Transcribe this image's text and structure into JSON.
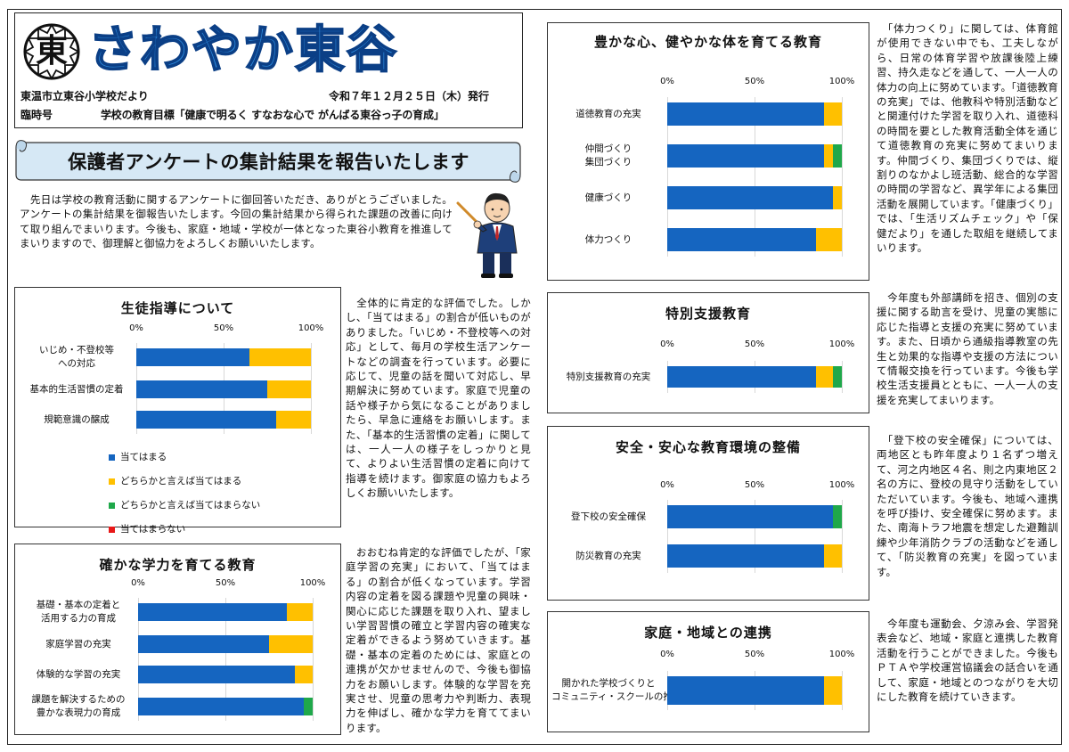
{
  "masthead": {
    "school_mark": "東",
    "title": "さわやか東谷",
    "publisher": "東温市立東谷小学校だより",
    "date": "令和７年１２月２５日（木）発行",
    "issue": "臨時号",
    "goal": "学校の教育目標「健康で明るく すなおな心で がんばる東谷っ子の育成」"
  },
  "banner": {
    "text": "保護者アンケートの集計結果を報告いたします"
  },
  "intro": "　先日は学校の教育活動に関するアンケートに御回答いただき、ありがとうございました。アンケートの集計結果を御報告いたします。今回の集計結果から得られた課題の改善に向けて取り組んでまいります。今後も、家庭・地域・学校が一体となった東谷小教育を推進してまいりますので、御理解と御協力をよろしくお願いいたします。",
  "legend": {
    "items": [
      "当てはまる",
      "どちらかと言えば当てはまる",
      "どちらかと言えば当てはまらない",
      "当てはまらない"
    ],
    "colors": [
      "#1565c0",
      "#ffc000",
      "#1fa84a",
      "#e81818"
    ]
  },
  "texts": {
    "seito": "　全体的に肯定的な評価でした。しかし、「当てはまる」の割合が低いものがありました。「いじめ・不登校等への対応」として、毎月の学校生活アンケートなどの調査を行っています。必要に応じて、児童の話を聞いて対応し、早期解決に努めています。家庭で児童の話や様子から気になることがありましたら、早急に連絡をお願いします。また、「基本的生活習慣の定着」に関しては、一人一人の様子をしっかりと見て、よりよい生活習慣の定着に向けて指導を続けます。御家庭の協力もよろしくお願いいたします。",
    "gakuryoku": "　おおむね肯定的な評価でしたが、「家庭学習の充実」において、「当てはまる」の割合が低くなっています。学習内容の定着を図る課題や児童の興味・関心に応じた課題を取り入れ、望ましい学習習慣の確立と学習内容の確実な定着ができるよう努めていきます。基礎・基本の定着のためには、家庭との連携が欠かせませんので、今後も御協力をお願いします。体験的な学習を充実させ、児童の思考力や判断力、表現力を伸ばし、確かな学力を育ててまいります。",
    "yutaka": "　「体力つくり」に関しては、体育館が使用できない中でも、工夫しながら、日常の体育学習や放課後陸上練習、持久走などを通して、一人一人の体力の向上に努めています。「道徳教育の充実」では、他教科や特別活動などと関連付けた学習を取り入れ、道徳科の時間を要とした教育活動全体を通じて道徳教育の充実に努めてまいります。仲間づくり、集団づくりでは、縦割りのなかよし班活動、総合的な学習の時間の学習など、異学年による集団活動を展開しています。「健康づくり」では、「生活リズムチェック」や「保健だより」を通した取組を継続してまいります。",
    "tokubetsu": "　今年度も外部講師を招き、個別の支援に関する助言を受け、児童の実態に応じた指導と支援の充実に努めています。また、日頃から通級指導教室の先生と効果的な指導や支援の方法について情報交換を行っています。今後も学校生活支援員とともに、一人一人の支援を充実してまいります。",
    "anzen": "　「登下校の安全確保」については、両地区とも昨年度より１名ずつ増えて、河之内地区４名、則之内東地区２名の方に、登校の見守り活動をしていただいています。今後も、地域へ連携を呼び掛け、安全確保に努めます。また、南海トラフ地震を想定した避難訓練や少年消防クラブの活動などを通して、「防災教育の充実」を図っています。",
    "katei": "　今年度も運動会、夕涼み会、学習発表会など、地域・家庭と連携した教育活動を行うことができました。今後もＰＴＡや学校運営協議会の話合いを通して、家庭・地域とのつながりを大切にした教育を続けていきます。"
  },
  "chart_data": [
    {
      "id": "seito",
      "type": "bar",
      "title": "生徒指導について",
      "categories": [
        "いじめ・不登校等\nへの対応",
        "基本的生活習慣の定着",
        "規範意識の醸成"
      ],
      "ticks": [
        "0%",
        "50%",
        "100%"
      ],
      "xlim": [
        0,
        100
      ],
      "series": [
        {
          "name": "当てはまる",
          "values": [
            65,
            75,
            80
          ]
        },
        {
          "name": "どちらかと言えば当てはまる",
          "values": [
            35,
            25,
            20
          ]
        },
        {
          "name": "どちらかと言えば当てはまらない",
          "values": [
            0,
            0,
            0
          ]
        },
        {
          "name": "当てはまらない",
          "values": [
            0,
            0,
            0
          ]
        }
      ]
    },
    {
      "id": "gakuryoku",
      "type": "bar",
      "title": "確かな学力を育てる教育",
      "categories": [
        "基礎・基本の定着と\n活用する力の育成",
        "家庭学習の充実",
        "体験的な学習の充実",
        "課題を解決するための\n豊かな表現力の育成"
      ],
      "ticks": [
        "0%",
        "50%",
        "100%"
      ],
      "xlim": [
        0,
        100
      ],
      "series": [
        {
          "name": "当てはまる",
          "values": [
            85,
            75,
            90,
            95
          ]
        },
        {
          "name": "どちらかと言えば当てはまる",
          "values": [
            15,
            25,
            10,
            0
          ]
        },
        {
          "name": "どちらかと言えば当てはまらない",
          "values": [
            0,
            0,
            0,
            5
          ]
        },
        {
          "name": "当てはまらない",
          "values": [
            0,
            0,
            0,
            0
          ]
        }
      ]
    },
    {
      "id": "yutaka",
      "type": "bar",
      "title": "豊かな心、健やかな体を育てる教育",
      "categories": [
        "道徳教育の充実",
        "仲間づくり\n集団づくり",
        "健康づくり",
        "体力つくり"
      ],
      "ticks": [
        "0%",
        "50%",
        "100%"
      ],
      "xlim": [
        0,
        100
      ],
      "series": [
        {
          "name": "当てはまる",
          "values": [
            90,
            90,
            95,
            85
          ]
        },
        {
          "name": "どちらかと言えば当てはまる",
          "values": [
            10,
            5,
            5,
            15
          ]
        },
        {
          "name": "どちらかと言えば当てはまらない",
          "values": [
            0,
            5,
            0,
            0
          ]
        },
        {
          "name": "当てはまらない",
          "values": [
            0,
            0,
            0,
            0
          ]
        }
      ]
    },
    {
      "id": "tokubetsu",
      "type": "bar",
      "title": "特別支援教育",
      "categories": [
        "特別支援教育の充実"
      ],
      "ticks": [
        "0%",
        "50%",
        "100%"
      ],
      "xlim": [
        0,
        100
      ],
      "series": [
        {
          "name": "当てはまる",
          "values": [
            85
          ]
        },
        {
          "name": "どちらかと言えば当てはまる",
          "values": [
            10
          ]
        },
        {
          "name": "どちらかと言えば当てはまらない",
          "values": [
            5
          ]
        },
        {
          "name": "当てはまらない",
          "values": [
            0
          ]
        }
      ]
    },
    {
      "id": "anzen",
      "type": "bar",
      "title": "安全・安心な教育環境の整備",
      "categories": [
        "登下校の安全確保",
        "防災教育の充実"
      ],
      "ticks": [
        "0%",
        "50%",
        "100%"
      ],
      "xlim": [
        0,
        100
      ],
      "series": [
        {
          "name": "当てはまる",
          "values": [
            95,
            90
          ]
        },
        {
          "name": "どちらかと言えば当てはまる",
          "values": [
            0,
            10
          ]
        },
        {
          "name": "どちらかと言えば当てはまらない",
          "values": [
            5,
            0
          ]
        },
        {
          "name": "当てはまらない",
          "values": [
            0,
            0
          ]
        }
      ]
    },
    {
      "id": "katei",
      "type": "bar",
      "title": "家庭・地域との連携",
      "categories": [
        "開かれた学校づくりと\nコミュニティ・スクールの推進"
      ],
      "ticks": [
        "0%",
        "50%",
        "100%"
      ],
      "xlim": [
        0,
        100
      ],
      "series": [
        {
          "name": "当てはまる",
          "values": [
            90
          ]
        },
        {
          "name": "どちらかと言えば当てはまる",
          "values": [
            10
          ]
        },
        {
          "name": "どちらかと言えば当てはまらない",
          "values": [
            0
          ]
        },
        {
          "name": "当てはまらない",
          "values": [
            0
          ]
        }
      ]
    }
  ]
}
